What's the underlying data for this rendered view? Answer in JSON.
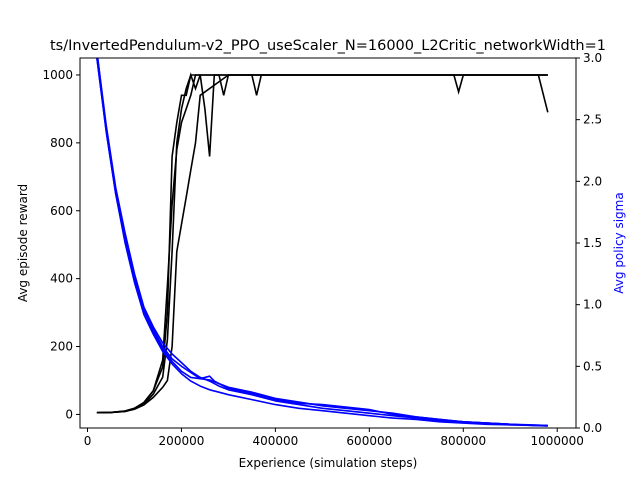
{
  "chart_data": {
    "type": "line",
    "title": "ts/InvertedPendulum-v2_PPO_useScaler_N=16000_L2Critic_networkWidth=1",
    "xlabel": "Experience (simulation steps)",
    "ylabel_left": "Avg episode reward",
    "ylabel_right": "Avg policy sigma",
    "colors": {
      "reward": "#000000",
      "sigma": "#0000ff"
    },
    "xlim": [
      -16000,
      1040000
    ],
    "ylim_left": [
      -40,
      1050
    ],
    "ylim_right": [
      0,
      3.0
    ],
    "x_ticks": [
      0,
      200000,
      400000,
      600000,
      800000,
      1000000
    ],
    "y_left_ticks": [
      0,
      200,
      400,
      600,
      800,
      1000
    ],
    "y_right_ticks": [
      0.0,
      0.5,
      1.0,
      1.5,
      2.0,
      2.5,
      3.0
    ],
    "x_tick_labels": [
      "0",
      "200000",
      "400000",
      "600000",
      "800000",
      "1000000"
    ],
    "y_left_tick_labels": [
      "0",
      "200",
      "400",
      "600",
      "800",
      "1000"
    ],
    "y_right_tick_labels": [
      "0.0",
      "0.5",
      "1.0",
      "1.5",
      "2.0",
      "2.5",
      "3.0"
    ],
    "grid": false,
    "reward_series": [
      {
        "x": [
          20000,
          50000,
          80000,
          100000,
          120000,
          140000,
          160000,
          170000,
          180000,
          190000,
          200000,
          210000,
          220000,
          230000,
          240000,
          260000,
          280000,
          300000,
          320000,
          340000,
          360000,
          380000,
          400000,
          500000,
          600000,
          700000,
          780000,
          790000,
          800000,
          810000,
          900000,
          960000,
          980000
        ],
        "y": [
          5,
          6,
          10,
          18,
          35,
          70,
          160,
          380,
          620,
          780,
          860,
          900,
          940,
          1000,
          1000,
          1000,
          1000,
          1000,
          1000,
          1000,
          1000,
          1000,
          1000,
          1000,
          1000,
          1000,
          1000,
          950,
          1000,
          1000,
          1000,
          1000,
          890
        ]
      },
      {
        "x": [
          20000,
          50000,
          80000,
          100000,
          120000,
          140000,
          160000,
          170000,
          180000,
          190000,
          200000,
          210000,
          220000,
          230000,
          240000,
          250000,
          260000,
          270000,
          280000,
          290000,
          300000,
          320000,
          340000,
          350000,
          360000,
          370000,
          380000,
          500000,
          700000,
          900000,
          980000
        ],
        "y": [
          5,
          6,
          10,
          18,
          35,
          70,
          140,
          300,
          760,
          860,
          940,
          940,
          1000,
          960,
          1000,
          900,
          760,
          1000,
          1000,
          940,
          1000,
          1000,
          1000,
          1000,
          940,
          1000,
          1000,
          1000,
          1000,
          1000,
          1000
        ]
      },
      {
        "x": [
          20000,
          50000,
          80000,
          100000,
          120000,
          140000,
          160000,
          170000,
          180000,
          190000,
          200000,
          210000,
          220000,
          230000,
          240000,
          300000,
          500000,
          700000,
          900000,
          980000
        ],
        "y": [
          5,
          6,
          9,
          16,
          30,
          60,
          110,
          220,
          480,
          800,
          900,
          960,
          1000,
          1000,
          1000,
          1000,
          1000,
          1000,
          1000,
          1000
        ]
      },
      {
        "x": [
          20000,
          50000,
          80000,
          100000,
          120000,
          140000,
          160000,
          170000,
          180000,
          190000,
          200000,
          210000,
          220000,
          230000,
          240000,
          300000,
          500000,
          700000,
          900000,
          980000
        ],
        "y": [
          5,
          6,
          9,
          15,
          28,
          50,
          80,
          100,
          200,
          480,
          560,
          640,
          720,
          800,
          940,
          1000,
          1000,
          1000,
          1000,
          1000
        ]
      }
    ],
    "sigma_series": [
      {
        "x": [
          20000,
          40000,
          60000,
          80000,
          100000,
          120000,
          140000,
          160000,
          180000,
          200000,
          220000,
          240000,
          260000,
          280000,
          300000,
          350000,
          400000,
          450000,
          500000,
          550000,
          600000,
          650000,
          700000,
          750000,
          800000,
          850000,
          900000,
          950000,
          980000
        ],
        "y": [
          3.05,
          2.42,
          1.92,
          1.55,
          1.22,
          0.96,
          0.8,
          0.66,
          0.56,
          0.5,
          0.45,
          0.4,
          0.39,
          0.36,
          0.33,
          0.29,
          0.24,
          0.21,
          0.18,
          0.16,
          0.14,
          0.12,
          0.09,
          0.07,
          0.05,
          0.04,
          0.03,
          0.025,
          0.02
        ]
      },
      {
        "x": [
          20000,
          40000,
          60000,
          80000,
          100000,
          120000,
          140000,
          160000,
          180000,
          200000,
          220000,
          240000,
          260000,
          270000,
          280000,
          300000,
          350000,
          400000,
          450000,
          500000,
          550000,
          600000,
          650000,
          700000,
          750000,
          800000,
          850000,
          900000,
          950000,
          980000
        ],
        "y": [
          3.0,
          2.4,
          1.9,
          1.52,
          1.2,
          0.95,
          0.78,
          0.64,
          0.54,
          0.46,
          0.41,
          0.4,
          0.42,
          0.38,
          0.36,
          0.32,
          0.28,
          0.23,
          0.2,
          0.19,
          0.17,
          0.15,
          0.11,
          0.09,
          0.07,
          0.05,
          0.04,
          0.03,
          0.02,
          0.02
        ]
      },
      {
        "x": [
          20000,
          40000,
          60000,
          80000,
          100000,
          120000,
          140000,
          160000,
          180000,
          200000,
          220000,
          240000,
          260000,
          280000,
          300000,
          350000,
          400000,
          450000,
          500000,
          550000,
          600000,
          650000,
          700000,
          750000,
          800000,
          850000,
          900000,
          950000,
          980000
        ],
        "y": [
          3.05,
          2.45,
          1.95,
          1.58,
          1.25,
          0.98,
          0.82,
          0.69,
          0.6,
          0.53,
          0.46,
          0.41,
          0.38,
          0.34,
          0.31,
          0.27,
          0.22,
          0.19,
          0.16,
          0.14,
          0.12,
          0.1,
          0.08,
          0.06,
          0.05,
          0.04,
          0.03,
          0.02,
          0.02
        ]
      },
      {
        "x": [
          20000,
          40000,
          60000,
          80000,
          100000,
          120000,
          140000,
          160000,
          180000,
          200000,
          220000,
          240000,
          260000,
          280000,
          300000,
          350000,
          400000,
          450000,
          500000,
          550000,
          600000,
          650000,
          700000,
          750000,
          800000,
          850000,
          900000,
          950000,
          980000
        ],
        "y": [
          3.0,
          2.4,
          1.9,
          1.5,
          1.18,
          0.92,
          0.76,
          0.62,
          0.52,
          0.44,
          0.38,
          0.34,
          0.31,
          0.29,
          0.27,
          0.23,
          0.19,
          0.16,
          0.14,
          0.12,
          0.1,
          0.08,
          0.07,
          0.05,
          0.04,
          0.03,
          0.025,
          0.02,
          0.015
        ]
      }
    ]
  }
}
